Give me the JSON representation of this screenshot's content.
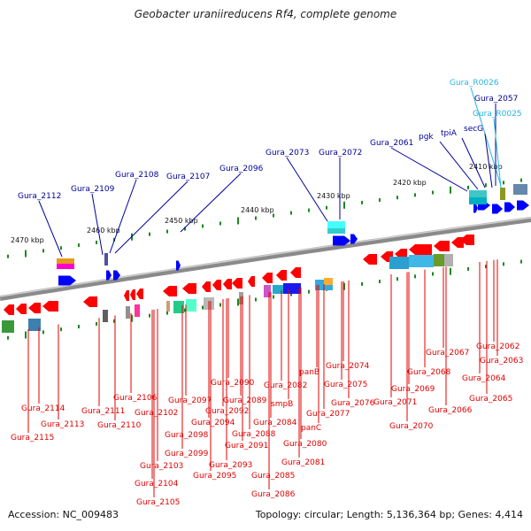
{
  "title": "Geobacter uraniireducens Rf4, complete genome",
  "footer": {
    "accession": "Accession: NC_009483",
    "info": "Topology: circular; Length: 5,136,364 bp; Genes: 4,414"
  },
  "scale_labels": [
    "2470 kbp",
    "2460 kbp",
    "2450 kbp",
    "2440 kbp",
    "2430 kbp",
    "2420 kbp",
    "2410 kbp"
  ],
  "colors": {
    "forward_gene": "#0000ff",
    "reverse_gene": "#ff0000",
    "forward_label": "#00009a",
    "reverse_label": "#e00000",
    "rna_label": "#27b4e0",
    "backbone": "#8a8a8a",
    "tick": "#1a8a1a"
  },
  "labels_top": [
    {
      "text": "Gura_R0026",
      "kind": "rna"
    },
    {
      "text": "Gura_2057",
      "kind": "forward"
    },
    {
      "text": "Gura_R0025",
      "kind": "rna"
    },
    {
      "text": "secG",
      "kind": "forward"
    },
    {
      "text": "tpiA",
      "kind": "forward"
    },
    {
      "text": "pgk",
      "kind": "forward"
    },
    {
      "text": "Gura_2061",
      "kind": "forward"
    },
    {
      "text": "Gura_2072",
      "kind": "forward"
    },
    {
      "text": "Gura_2073",
      "kind": "forward"
    },
    {
      "text": "Gura_2096",
      "kind": "forward"
    },
    {
      "text": "Gura_2107",
      "kind": "forward"
    },
    {
      "text": "Gura_2108",
      "kind": "forward"
    },
    {
      "text": "Gura_2109",
      "kind": "forward"
    },
    {
      "text": "Gura_2112",
      "kind": "forward"
    }
  ],
  "labels_bottom": [
    {
      "text": "Gura_2062"
    },
    {
      "text": "Gura_2063"
    },
    {
      "text": "Gura_2064"
    },
    {
      "text": "Gura_2065"
    },
    {
      "text": "Gura_2066"
    },
    {
      "text": "Gura_2067"
    },
    {
      "text": "Gura_2068"
    },
    {
      "text": "Gura_2069"
    },
    {
      "text": "Gura_2070"
    },
    {
      "text": "Gura_2071"
    },
    {
      "text": "Gura_2074"
    },
    {
      "text": "Gura_2075"
    },
    {
      "text": "Gura_2076"
    },
    {
      "text": "Gura_2077"
    },
    {
      "text": "panB"
    },
    {
      "text": "Gura_2082"
    },
    {
      "text": "smpB"
    },
    {
      "text": "panC"
    },
    {
      "text": "Gura_2080"
    },
    {
      "text": "Gura_2081"
    },
    {
      "text": "Gura_2084"
    },
    {
      "text": "Gura_2090"
    },
    {
      "text": "Gura_2089"
    },
    {
      "text": "Gura_2088"
    },
    {
      "text": "Gura_2085"
    },
    {
      "text": "Gura_2086"
    },
    {
      "text": "Gura_2092"
    },
    {
      "text": "Gura_2094"
    },
    {
      "text": "Gura_2091"
    },
    {
      "text": "Gura_2093"
    },
    {
      "text": "Gura_2095"
    },
    {
      "text": "Gura_2097"
    },
    {
      "text": "Gura_2098"
    },
    {
      "text": "Gura_2099"
    },
    {
      "text": "Gura_2102"
    },
    {
      "text": "Gura_2103"
    },
    {
      "text": "Gura_2104"
    },
    {
      "text": "Gura_2105"
    },
    {
      "text": "Gura_2106"
    },
    {
      "text": "Gura_2110"
    },
    {
      "text": "Gura_2111"
    },
    {
      "text": "Gura_2113"
    },
    {
      "text": "Gura_2114"
    },
    {
      "text": "Gura_2115"
    }
  ]
}
